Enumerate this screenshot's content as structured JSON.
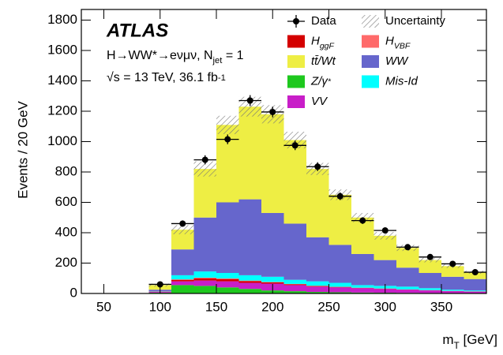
{
  "chart_data": {
    "type": "stacked_histogram",
    "annotations": [
      "ATLAS",
      [
        {
          "text": "H→WW*→eνμν, N"
        },
        {
          "text": "jet",
          "shift": "sub"
        },
        {
          "text": " = 1"
        }
      ],
      [
        {
          "text": "√s = 13 TeV, 36.1 fb"
        },
        {
          "text": "-1",
          "shift": "sup"
        }
      ]
    ],
    "y_label": "Events / 20 GeV",
    "x_label": [
      {
        "text": "m"
      },
      {
        "text": "T",
        "shift": "sub"
      },
      {
        "text": " [GeV]"
      }
    ],
    "xlim": [
      30,
      390
    ],
    "ylim": [
      0,
      1870
    ],
    "xticks": [
      50,
      100,
      150,
      200,
      250,
      300,
      350
    ],
    "yticks": [
      0,
      200,
      400,
      600,
      800,
      1000,
      1200,
      1400,
      1600,
      1800
    ],
    "bins": [
      90,
      110,
      130,
      150,
      170,
      190,
      210,
      230,
      250,
      270,
      290,
      310,
      330,
      350,
      370,
      390
    ],
    "series": [
      {
        "name": [
          {
            "text": "Z/γ"
          },
          {
            "text": "*",
            "shift": "sup"
          }
        ],
        "color": "#1ec81e",
        "values": [
          5,
          55,
          50,
          40,
          30,
          20,
          15,
          10,
          8,
          6,
          5,
          4,
          3,
          2,
          2
        ]
      },
      {
        "name": [
          {
            "text": "VV"
          }
        ],
        "color": "#c81ec8",
        "values": [
          5,
          25,
          35,
          40,
          40,
          45,
          40,
          35,
          32,
          29,
          25,
          21,
          17,
          13,
          10
        ]
      },
      {
        "name": [
          {
            "text": "H"
          },
          {
            "text": "ggF",
            "shift": "sub"
          }
        ],
        "color": "#d40000",
        "values": [
          2,
          10,
          15,
          15,
          12,
          8,
          6,
          4,
          3,
          2,
          2,
          1,
          1,
          1,
          1
        ]
      },
      {
        "name": [
          {
            "text": "H"
          },
          {
            "text": "VBF",
            "shift": "sub"
          }
        ],
        "color": "#ff6a6a",
        "values": [
          1,
          3,
          4,
          4,
          3,
          3,
          2,
          2,
          1,
          1,
          1,
          1,
          1,
          1,
          1
        ]
      },
      {
        "name": [
          {
            "text": "Mis-Id"
          }
        ],
        "color": "#00ffff",
        "values": [
          2,
          27,
          41,
          36,
          35,
          34,
          27,
          29,
          26,
          17,
          17,
          18,
          13,
          8,
          6
        ]
      },
      {
        "name": [
          {
            "text": "WW"
          }
        ],
        "color": "#6666cc",
        "values": [
          10,
          170,
          355,
          465,
          500,
          420,
          370,
          290,
          250,
          205,
          170,
          125,
          100,
          85,
          75
        ]
      },
      {
        "name": [
          {
            "text": "tt̄/Wt"
          }
        ],
        "color": "#eeee44",
        "values": [
          30,
          130,
          320,
          510,
          610,
          650,
          550,
          450,
          330,
          240,
          160,
          130,
          85,
          70,
          45
        ]
      }
    ],
    "uncertainty": {
      "name": "Uncertainty",
      "values": [
        10,
        30,
        50,
        60,
        65,
        60,
        55,
        40,
        35,
        30,
        25,
        20,
        15,
        12,
        10
      ]
    },
    "data": {
      "name": "Data",
      "color": "#000000",
      "values": [
        60,
        460,
        880,
        1015,
        1270,
        1195,
        975,
        835,
        640,
        480,
        415,
        305,
        240,
        195,
        140
      ],
      "errors": [
        8,
        21,
        30,
        32,
        36,
        35,
        31,
        29,
        25,
        22,
        20,
        17,
        15,
        14,
        12
      ]
    }
  }
}
